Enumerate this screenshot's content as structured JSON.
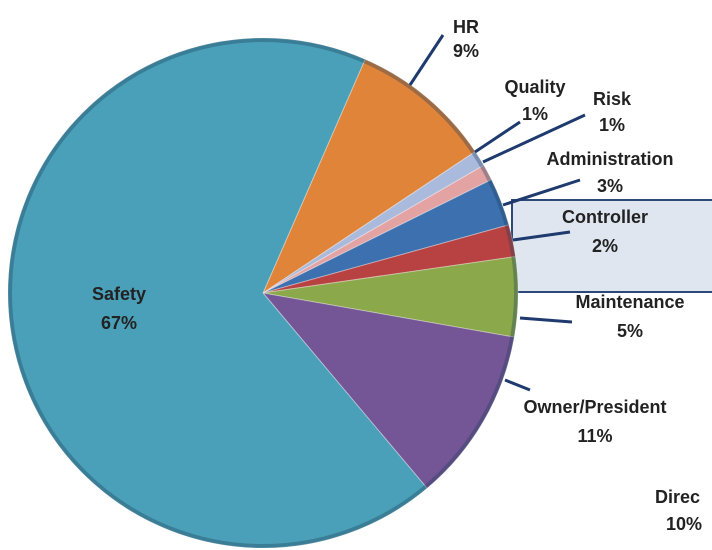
{
  "chart_data": {
    "type": "pie",
    "categories": [
      "HR",
      "Quality",
      "Risk",
      "Administration",
      "Controller",
      "Maintenance",
      "Owner/President",
      "Safety"
    ],
    "values": [
      9,
      1,
      1,
      3,
      2,
      5,
      11,
      67
    ],
    "value_labels": [
      "9%",
      "1%",
      "1%",
      "3%",
      "2%",
      "5%",
      "11%",
      "67%"
    ],
    "colors": [
      "#e0843a",
      "#a9badd",
      "#e3a3a3",
      "#3d70ae",
      "#b84242",
      "#8ba94b",
      "#745595",
      "#4aa0b8"
    ],
    "annotations": [
      "Direc",
      "10%"
    ]
  }
}
